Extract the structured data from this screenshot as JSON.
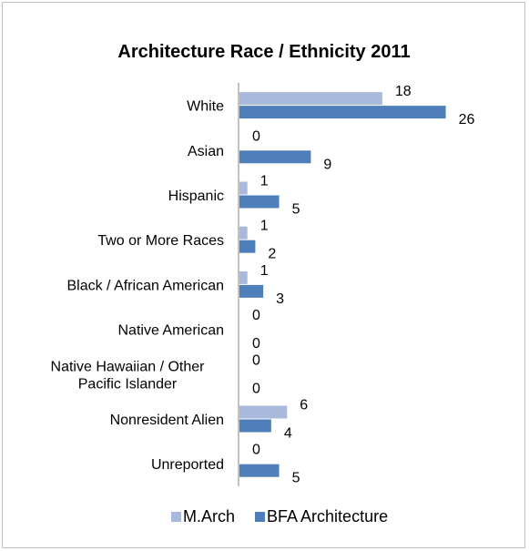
{
  "chart_data": {
    "type": "bar",
    "orientation": "horizontal",
    "title": "Architecture Race / Ethnicity 2011",
    "categories": [
      [
        "White"
      ],
      [
        "Asian"
      ],
      [
        "Hispanic"
      ],
      [
        "Two or More Races"
      ],
      [
        "Black / African American"
      ],
      [
        "Native American"
      ],
      [
        "Native Hawaiian /  Other",
        "Pacific Islander"
      ],
      [
        "Nonresident Alien"
      ],
      [
        "Unreported"
      ]
    ],
    "series": [
      {
        "name": "M.Arch",
        "color": "#a9b9dc",
        "values": [
          18,
          0,
          1,
          1,
          1,
          0,
          0,
          6,
          0
        ]
      },
      {
        "name": "BFA Architecture",
        "color": "#4f7fba",
        "values": [
          26,
          9,
          5,
          2,
          3,
          0,
          0,
          4,
          5
        ]
      }
    ],
    "xlim": [
      0,
      28
    ],
    "data_labels": true,
    "grid": false,
    "legend_position": "bottom"
  }
}
